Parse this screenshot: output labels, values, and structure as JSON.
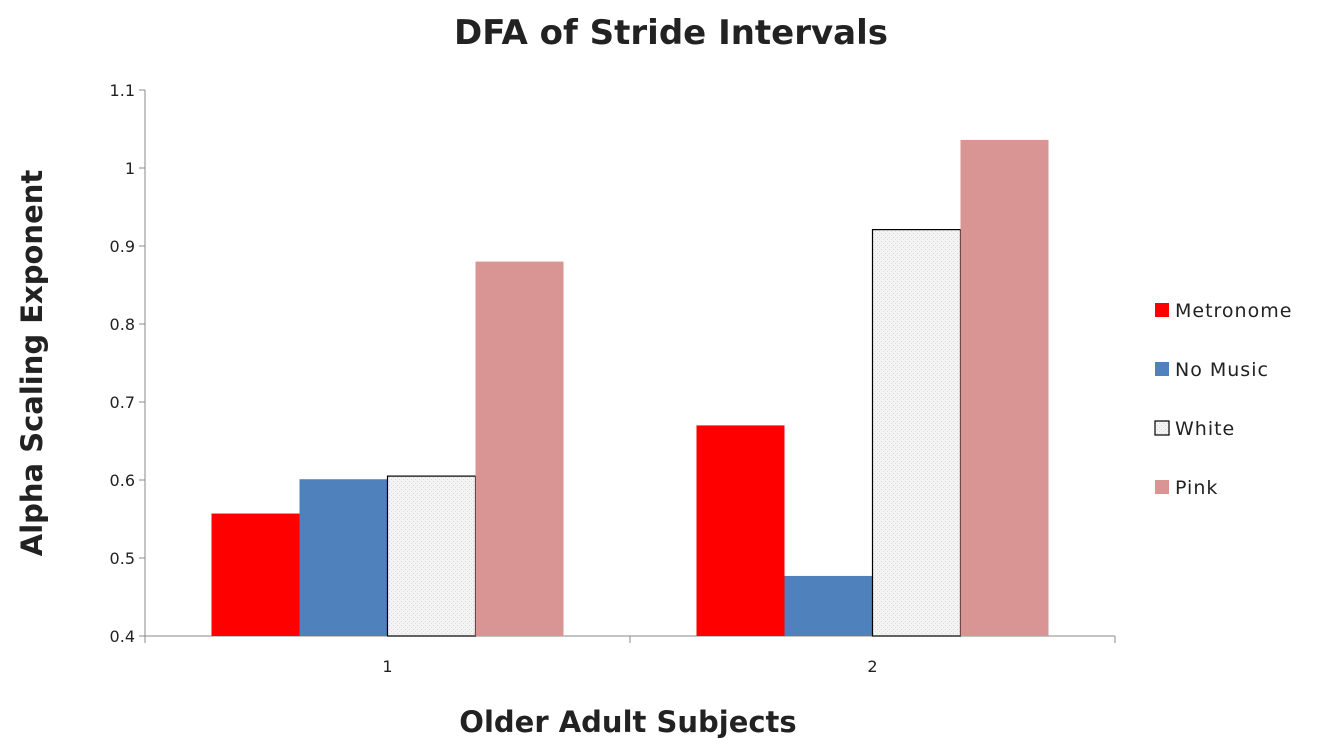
{
  "chart_data": {
    "type": "bar",
    "title": "DFA of Stride Intervals",
    "xlabel": "Older Adult  Subjects",
    "ylabel": "Alpha Scaling  Exponent",
    "categories": [
      "1",
      "2"
    ],
    "ylim": [
      0.4,
      1.1
    ],
    "yticks": [
      "0.4",
      "0.5",
      "0.6",
      "0.7",
      "0.8",
      "0.9",
      "1",
      "1.1"
    ],
    "grid": false,
    "legend_position": "right",
    "series": [
      {
        "name": "Metronome",
        "values": [
          0.557,
          0.67
        ],
        "color": "#ff0000",
        "pattern": "solid"
      },
      {
        "name": "No Music",
        "values": [
          0.601,
          0.477
        ],
        "color": "#4f81bd",
        "pattern": "solid"
      },
      {
        "name": "White",
        "values": [
          0.605,
          0.921
        ],
        "color": "#f2f2f2",
        "pattern": "dotted"
      },
      {
        "name": "Pink",
        "values": [
          0.88,
          1.036
        ],
        "color": "#d99594",
        "pattern": "solid"
      }
    ]
  }
}
